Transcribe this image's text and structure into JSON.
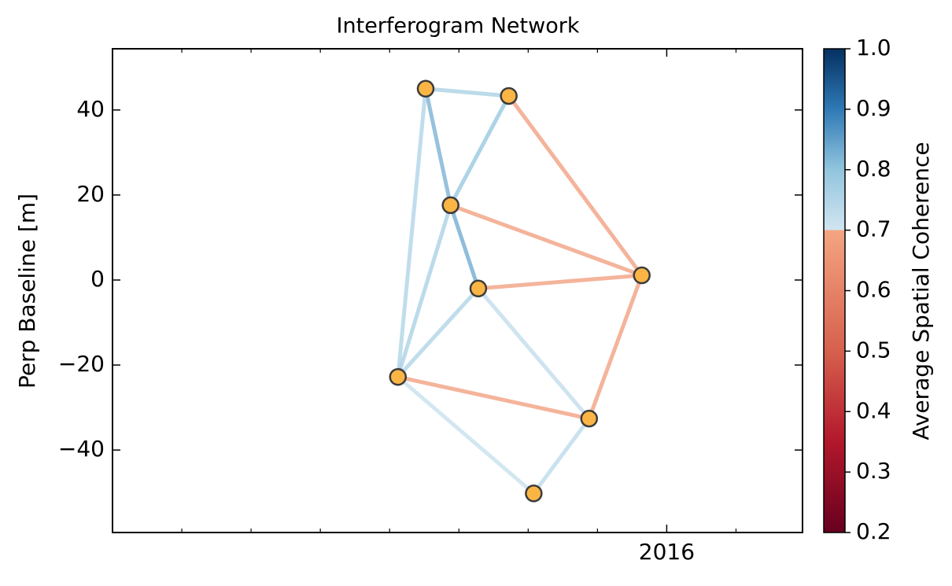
{
  "chart_data": {
    "type": "network",
    "title": "Interferogram Network",
    "ylabel": "Perp Baseline [m]",
    "colorbar_label": "Average Spatial Coherence",
    "x": [
      2015.13,
      2015.43,
      2015.22,
      2015.32,
      2015.91,
      2015.03,
      2015.72,
      2015.52
    ],
    "y": [
      45,
      43.3,
      17.6,
      -2,
      1.1,
      -22.8,
      -32.6,
      -50.2
    ],
    "marker_color": "#fbb545",
    "edges": [
      {
        "from": 0,
        "to": 1,
        "value": 0.77
      },
      {
        "from": 0,
        "to": 2,
        "value": 0.83
      },
      {
        "from": 0,
        "to": 5,
        "value": 0.76
      },
      {
        "from": 1,
        "to": 2,
        "value": 0.8
      },
      {
        "from": 1,
        "to": 4,
        "value": 0.67
      },
      {
        "from": 2,
        "to": 3,
        "value": 0.84
      },
      {
        "from": 2,
        "to": 4,
        "value": 0.67
      },
      {
        "from": 2,
        "to": 5,
        "value": 0.77
      },
      {
        "from": 3,
        "to": 4,
        "value": 0.67
      },
      {
        "from": 3,
        "to": 5,
        "value": 0.76
      },
      {
        "from": 3,
        "to": 6,
        "value": 0.73
      },
      {
        "from": 5,
        "to": 6,
        "value": 0.67
      },
      {
        "from": 5,
        "to": 7,
        "value": 0.72
      },
      {
        "from": 6,
        "to": 4,
        "value": 0.67
      },
      {
        "from": 6,
        "to": 7,
        "value": 0.74
      }
    ],
    "xlim": [
      2014,
      2016.49
    ],
    "xticks": [
      2016
    ],
    "xminorticks": [
      2014.25,
      2014.5,
      2014.75,
      2015,
      2015.25,
      2015.5,
      2015.75,
      2016.25
    ],
    "ylim": [
      -59.4,
      54.4
    ],
    "yticks": [
      {
        "value": -40,
        "label": "−40"
      },
      {
        "value": -20,
        "label": "−20"
      },
      0,
      20,
      40
    ],
    "clim": [
      0.2,
      1.0
    ],
    "cticks": [
      0.2,
      0.3,
      0.4,
      0.5,
      0.6,
      0.7,
      0.8,
      0.9,
      {
        "value": 1,
        "label": "1.0"
      }
    ],
    "colormap": [
      {
        "value": 0.2,
        "color": "#67001f"
      },
      {
        "value": 0.35,
        "color": "#b2182b"
      },
      {
        "value": 0.5,
        "color": "#d6604d"
      },
      {
        "value": 0.7,
        "color": "#f4a582"
      },
      {
        "value": 0.7,
        "color": "#d1e5f0"
      },
      {
        "value": 0.8,
        "color": "#92c5de"
      },
      {
        "value": 0.9,
        "color": "#2f79b5"
      },
      {
        "value": 1.0,
        "color": "#053061"
      }
    ]
  }
}
